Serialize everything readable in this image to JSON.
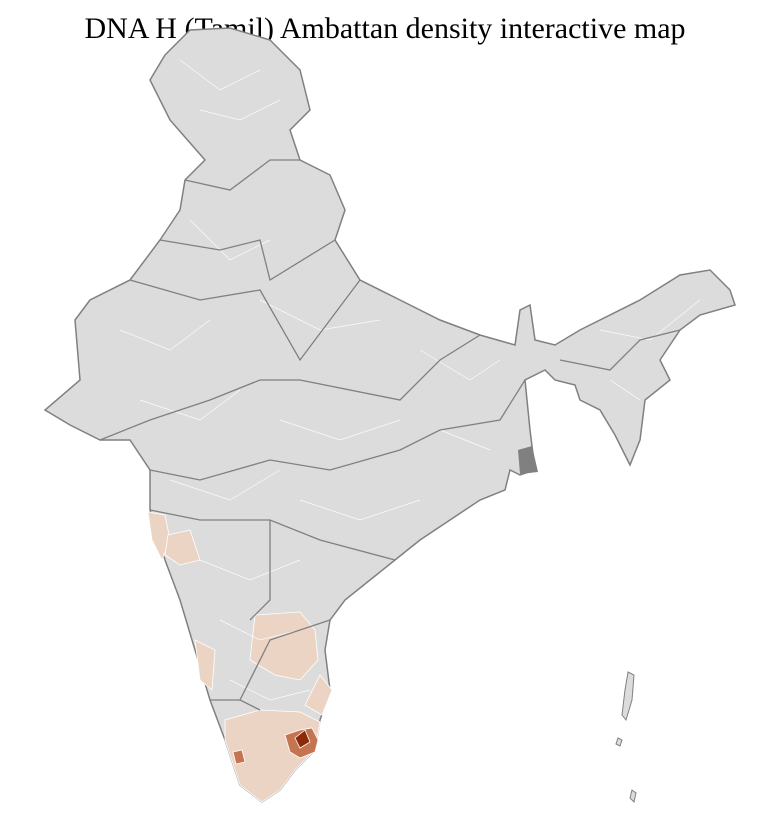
{
  "title": "DNA H (Tamil) Ambattan density interactive map",
  "colors": {
    "no_data": "#dcdcdc",
    "low": "#ecd4c5",
    "medium": "#c57451",
    "high": "#8a2a06",
    "state_border": "#808080",
    "district_border": "#ffffff"
  },
  "legend": null
}
